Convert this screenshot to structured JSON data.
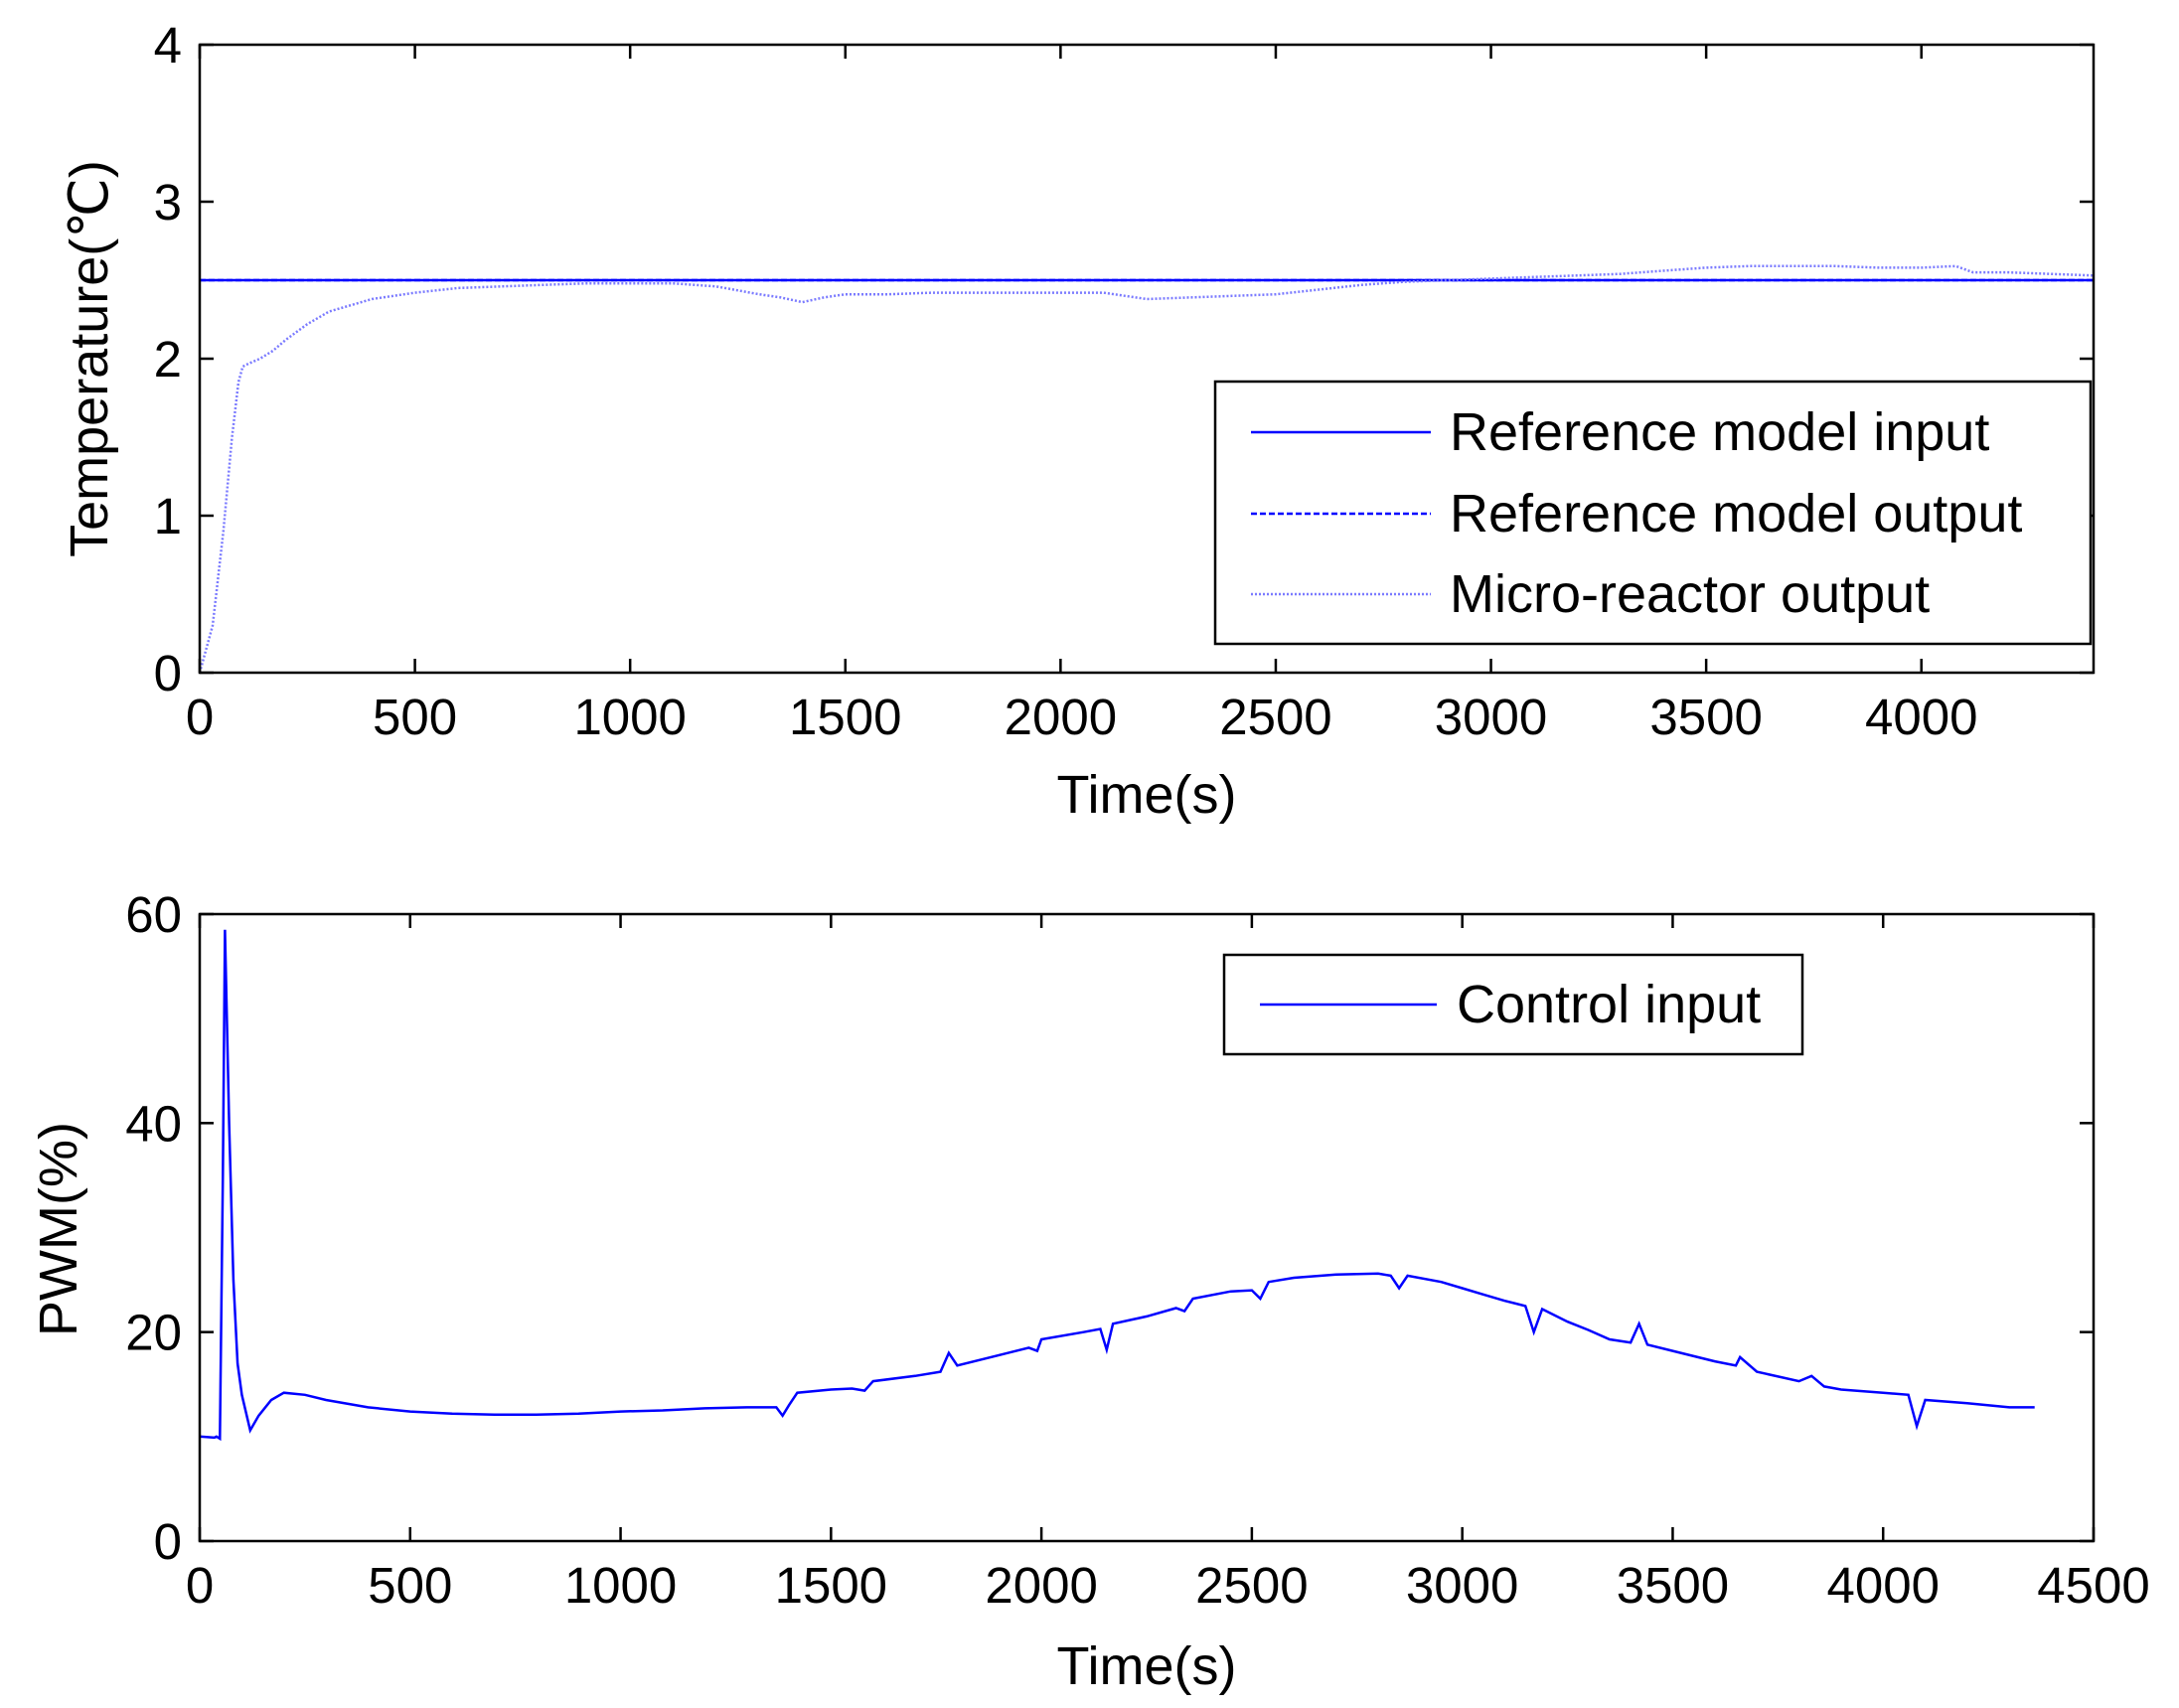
{
  "colors": {
    "reference_input": "#0000ff",
    "reference_output": "#0000ff",
    "micro_reactor_output": "#7b7bff",
    "control_input": "#0000ff",
    "axes": "#000000",
    "background": "#ffffff"
  },
  "chart_data": [
    {
      "type": "line",
      "xlabel": "Time(s)",
      "ylabel": "Temperature(℃)",
      "xlim": [
        0,
        4400
      ],
      "ylim": [
        0,
        4
      ],
      "xticks": [
        0,
        500,
        1000,
        1500,
        2000,
        2500,
        3000,
        3500,
        4000
      ],
      "yticks": [
        0,
        1,
        2,
        3,
        4
      ],
      "grid": false,
      "legend_position": "right",
      "series": [
        {
          "name": "Reference model input",
          "line_style": "solid",
          "x": [
            0,
            4400
          ],
          "y": [
            2.5,
            2.5
          ]
        },
        {
          "name": "Reference model output",
          "line_style": "dashed",
          "x": [
            0,
            4400
          ],
          "y": [
            2.5,
            2.5
          ]
        },
        {
          "name": "Micro-reactor output",
          "line_style": "dotted",
          "x": [
            0,
            30,
            55,
            75,
            90,
            100,
            115,
            140,
            170,
            200,
            250,
            300,
            400,
            500,
            600,
            700,
            800,
            900,
            1000,
            1100,
            1200,
            1300,
            1350,
            1400,
            1450,
            1500,
            1600,
            1700,
            1800,
            1900,
            2000,
            2100,
            2150,
            2200,
            2300,
            2400,
            2500,
            2600,
            2700,
            2800,
            2900,
            3000,
            3100,
            3200,
            3300,
            3400,
            3500,
            3600,
            3700,
            3800,
            3900,
            4000,
            4080,
            4120,
            4200,
            4300,
            4400
          ],
          "y": [
            0.0,
            0.3,
            0.9,
            1.5,
            1.85,
            1.95,
            1.97,
            2.0,
            2.05,
            2.12,
            2.22,
            2.3,
            2.38,
            2.42,
            2.45,
            2.46,
            2.47,
            2.48,
            2.48,
            2.48,
            2.46,
            2.41,
            2.39,
            2.36,
            2.39,
            2.41,
            2.41,
            2.42,
            2.42,
            2.42,
            2.42,
            2.42,
            2.4,
            2.38,
            2.39,
            2.4,
            2.41,
            2.44,
            2.47,
            2.49,
            2.5,
            2.51,
            2.52,
            2.53,
            2.54,
            2.56,
            2.58,
            2.59,
            2.59,
            2.59,
            2.58,
            2.58,
            2.59,
            2.55,
            2.55,
            2.54,
            2.53
          ]
        }
      ]
    },
    {
      "type": "line",
      "xlabel": "Time(s)",
      "ylabel": "PWM(%)",
      "xlim": [
        0,
        4500
      ],
      "ylim": [
        0,
        60
      ],
      "xticks": [
        0,
        500,
        1000,
        1500,
        2000,
        2500,
        3000,
        3500,
        4000,
        4500
      ],
      "yticks": [
        0,
        20,
        40,
        60
      ],
      "grid": false,
      "legend_position": "top-right",
      "series": [
        {
          "name": "Control input",
          "line_style": "solid",
          "x": [
            0,
            35,
            40,
            48,
            55,
            60,
            70,
            80,
            90,
            100,
            120,
            140,
            170,
            200,
            250,
            300,
            400,
            500,
            600,
            700,
            800,
            900,
            1000,
            1100,
            1200,
            1300,
            1370,
            1385,
            1400,
            1420,
            1500,
            1550,
            1580,
            1600,
            1700,
            1760,
            1780,
            1800,
            1900,
            1970,
            1990,
            2000,
            2100,
            2140,
            2155,
            2170,
            2250,
            2320,
            2340,
            2360,
            2450,
            2500,
            2520,
            2540,
            2600,
            2700,
            2800,
            2830,
            2850,
            2870,
            2950,
            3000,
            3050,
            3100,
            3150,
            3170,
            3190,
            3250,
            3300,
            3350,
            3400,
            3420,
            3440,
            3500,
            3600,
            3650,
            3660,
            3700,
            3800,
            3830,
            3860,
            3900,
            4000,
            4060,
            4080,
            4100,
            4200,
            4300,
            4360
          ],
          "y": [
            10.0,
            9.9,
            10.0,
            9.8,
            35.0,
            58.5,
            40.0,
            25.0,
            17.0,
            14.0,
            10.6,
            12.0,
            13.5,
            14.2,
            14.0,
            13.5,
            12.8,
            12.4,
            12.2,
            12.1,
            12.1,
            12.2,
            12.4,
            12.5,
            12.7,
            12.8,
            12.8,
            12.0,
            13.0,
            14.2,
            14.5,
            14.6,
            14.4,
            15.3,
            15.8,
            16.2,
            18.0,
            16.8,
            17.8,
            18.5,
            18.2,
            19.3,
            20.0,
            20.3,
            18.3,
            20.8,
            21.5,
            22.3,
            22.0,
            23.2,
            23.9,
            24.0,
            23.2,
            24.8,
            25.2,
            25.5,
            25.6,
            25.4,
            24.2,
            25.4,
            24.8,
            24.2,
            23.6,
            23.0,
            22.5,
            20.0,
            22.2,
            21.0,
            20.2,
            19.3,
            19.0,
            20.8,
            18.8,
            18.2,
            17.2,
            16.8,
            17.6,
            16.2,
            15.3,
            15.8,
            14.8,
            14.5,
            14.2,
            14.0,
            11.0,
            13.5,
            13.2,
            12.8,
            12.8
          ]
        }
      ]
    }
  ]
}
